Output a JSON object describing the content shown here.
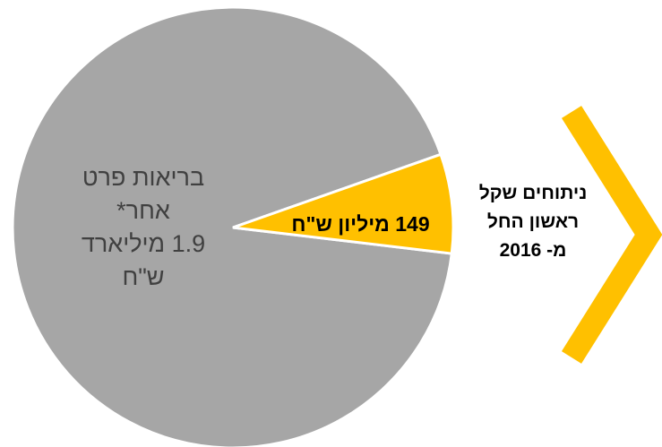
{
  "chart_data": {
    "type": "pie",
    "slices": [
      {
        "label_lines": [
          "בריאות פרט",
          "אחר*",
          "1.9 מיליארד",
          "ש\"ח"
        ],
        "value": 1900,
        "color": "#a6a6a6"
      },
      {
        "label_lines": [
          "149 מיליון ש\"ח"
        ],
        "value": 149,
        "color": "#ffc000"
      }
    ],
    "callout": {
      "lines": [
        "ניתוחים שקל",
        "ראשון החל",
        "מ- 2016"
      ],
      "color": "#ffc000"
    }
  }
}
